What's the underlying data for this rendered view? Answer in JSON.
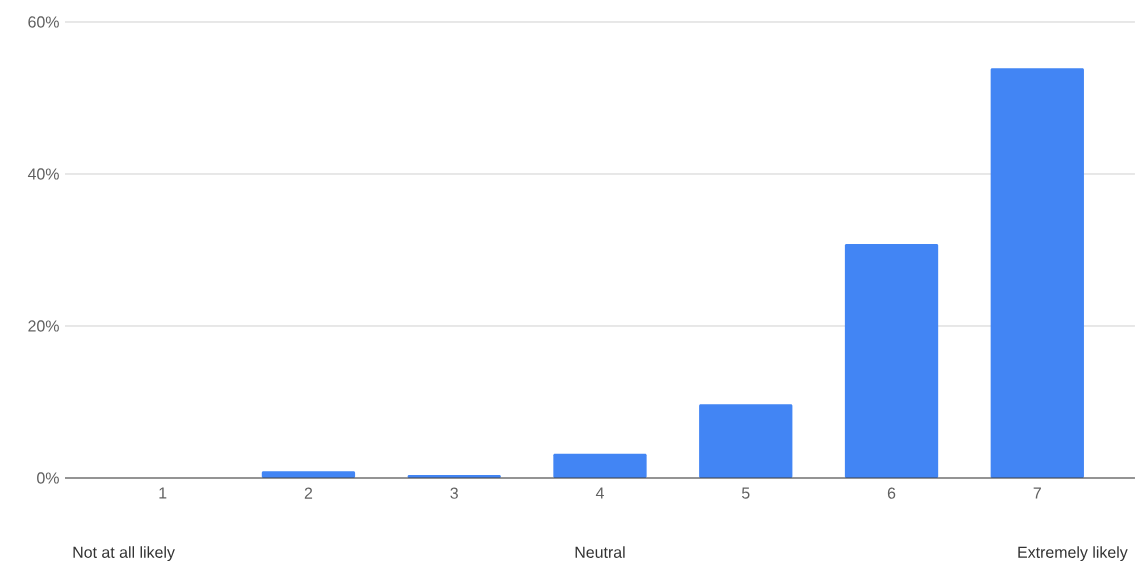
{
  "chart_data": {
    "type": "bar",
    "categories": [
      "1",
      "2",
      "3",
      "4",
      "5",
      "6",
      "7"
    ],
    "values": [
      0,
      0.9,
      0.4,
      3.2,
      9.7,
      30.8,
      53.9
    ],
    "color": "#4285f4",
    "ylim": [
      0,
      60
    ],
    "yticks": [
      {
        "value": 0,
        "label": "0%"
      },
      {
        "value": 20,
        "label": "20%"
      },
      {
        "value": 40,
        "label": "40%"
      },
      {
        "value": 60,
        "label": "60%"
      }
    ],
    "grid": "y",
    "annotations": [
      "Not at all likely",
      "Neutral",
      "Extremely likely"
    ]
  }
}
